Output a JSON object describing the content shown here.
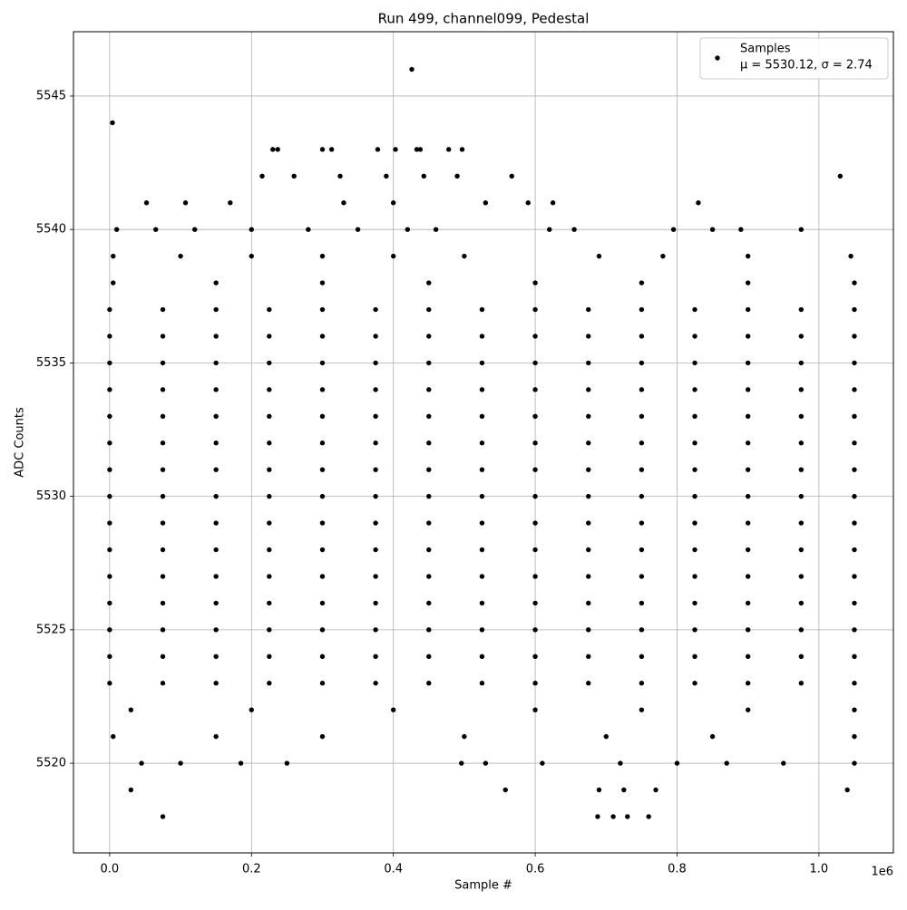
{
  "chart_data": {
    "type": "scatter",
    "title": "Run 499, channel099, Pedestal",
    "x_label": "Sample #",
    "y_label": "ADC Counts",
    "x_offset_label": "1e6",
    "xlim": [
      -0.051,
      1.105
    ],
    "ylim": [
      5516.64,
      5547.41
    ],
    "xticks": [
      {
        "value": 0,
        "label": "0.0"
      },
      {
        "value": 0.2,
        "label": "0.2"
      },
      {
        "value": 0.4,
        "label": "0.4"
      },
      {
        "value": 0.6,
        "label": "0.6"
      },
      {
        "value": 0.8,
        "label": "0.8"
      },
      {
        "value": 1,
        "label": "1.0"
      }
    ],
    "yticks": [
      5520,
      5525,
      5530,
      5535,
      5540,
      5545
    ],
    "grid": true,
    "legend": "upper right",
    "legend_note": "μ = 5530.12, σ = 2.74",
    "series": [
      {
        "name": "Samples",
        "color": "#000000",
        "x": [
          0.004,
          0.426,
          1.03,
          0.23,
          0.237,
          0.3,
          0.313,
          0.378,
          0.403,
          0.433,
          0.438,
          0.478,
          0.497,
          0.215,
          0.26,
          0.325,
          0.39,
          0.443,
          0.49,
          0.567,
          0.052,
          0.107,
          0.17,
          0.33,
          0.4,
          0.53,
          0.59,
          0.625,
          0.83,
          0.01,
          0.065,
          0.12,
          0.2,
          0.28,
          0.35,
          0.42,
          0.46,
          0.62,
          0.655,
          0.795,
          0.85,
          0.89,
          0.975,
          0.005,
          0.1,
          0.2,
          0.3,
          0.4,
          0.5,
          0.69,
          0.78,
          0.9,
          1.045,
          0.005,
          0.15,
          0.3,
          0.45,
          0.6,
          0.75,
          0.9,
          1.05,
          0.03,
          0.2,
          0.4,
          0.6,
          0.75,
          0.9,
          1.05,
          0.005,
          0.15,
          0.3,
          0.5,
          0.7,
          0.85,
          1.05,
          0.045,
          0.1,
          0.185,
          0.25,
          0.496,
          0.53,
          0.61,
          0.72,
          0.8,
          0.87,
          0.95,
          1.05,
          0.03,
          0.558,
          0.69,
          0.725,
          0.77,
          1.04,
          0.075,
          0.688,
          0.71,
          0.73,
          0.76,
          0,
          0.075,
          0.15,
          0.225,
          0.3,
          0.375,
          0.45,
          0.525,
          0.6,
          0.675,
          0.75,
          0.825,
          0.9,
          0.975,
          1.05,
          0,
          0.075,
          0.15,
          0.225,
          0.3,
          0.375,
          0.45,
          0.525,
          0.6,
          0.675,
          0.75,
          0.825,
          0.9,
          0.975,
          1.05,
          0,
          0.075,
          0.15,
          0.225,
          0.3,
          0.375,
          0.45,
          0.525,
          0.6,
          0.675,
          0.75,
          0.825,
          0.9,
          0.975,
          1.05,
          0,
          0.075,
          0.15,
          0.225,
          0.3,
          0.375,
          0.45,
          0.525,
          0.6,
          0.675,
          0.75,
          0.825,
          0.9,
          0.975,
          1.05,
          0,
          0.075,
          0.15,
          0.225,
          0.3,
          0.375,
          0.45,
          0.525,
          0.6,
          0.675,
          0.75,
          0.825,
          0.9,
          0.975,
          1.05,
          0,
          0.075,
          0.15,
          0.225,
          0.3,
          0.375,
          0.45,
          0.525,
          0.6,
          0.675,
          0.75,
          0.825,
          0.9,
          0.975,
          1.05,
          0,
          0.075,
          0.15,
          0.225,
          0.3,
          0.375,
          0.45,
          0.525,
          0.6,
          0.675,
          0.75,
          0.825,
          0.9,
          0.975,
          1.05,
          0,
          0.075,
          0.15,
          0.225,
          0.3,
          0.375,
          0.45,
          0.525,
          0.6,
          0.675,
          0.75,
          0.825,
          0.9,
          0.975,
          1.05,
          0,
          0.075,
          0.15,
          0.225,
          0.3,
          0.375,
          0.45,
          0.525,
          0.6,
          0.675,
          0.75,
          0.825,
          0.9,
          0.975,
          1.05,
          0,
          0.075,
          0.15,
          0.225,
          0.3,
          0.375,
          0.45,
          0.525,
          0.6,
          0.675,
          0.75,
          0.825,
          0.9,
          0.975,
          1.05,
          0,
          0.075,
          0.15,
          0.225,
          0.3,
          0.375,
          0.45,
          0.525,
          0.6,
          0.675,
          0.75,
          0.825,
          0.9,
          0.975,
          1.05,
          0,
          0.075,
          0.15,
          0.225,
          0.3,
          0.375,
          0.45,
          0.525,
          0.6,
          0.675,
          0.75,
          0.825,
          0.9,
          0.975,
          1.05,
          0,
          0.075,
          0.15,
          0.225,
          0.3,
          0.375,
          0.45,
          0.525,
          0.6,
          0.675,
          0.75,
          0.825,
          0.9,
          0.975,
          1.05,
          0,
          0.075,
          0.15,
          0.225,
          0.3,
          0.375,
          0.45,
          0.525,
          0.6,
          0.675,
          0.75,
          0.825,
          0.9,
          0.975,
          1.05,
          0,
          0.075,
          0.15,
          0.225,
          0.3,
          0.375,
          0.45,
          0.525,
          0.6,
          0.675,
          0.75,
          0.825,
          0.9,
          0.975,
          1.05
        ],
        "values": [
          5544,
          5546,
          5542,
          5543,
          5543,
          5543,
          5543,
          5543,
          5543,
          5543,
          5543,
          5543,
          5543,
          5542,
          5542,
          5542,
          5542,
          5542,
          5542,
          5542,
          5541,
          5541,
          5541,
          5541,
          5541,
          5541,
          5541,
          5541,
          5541,
          5540,
          5540,
          5540,
          5540,
          5540,
          5540,
          5540,
          5540,
          5540,
          5540,
          5540,
          5540,
          5540,
          5540,
          5539,
          5539,
          5539,
          5539,
          5539,
          5539,
          5539,
          5539,
          5539,
          5539,
          5538,
          5538,
          5538,
          5538,
          5538,
          5538,
          5538,
          5538,
          5522,
          5522,
          5522,
          5522,
          5522,
          5522,
          5522,
          5521,
          5521,
          5521,
          5521,
          5521,
          5521,
          5521,
          5520,
          5520,
          5520,
          5520,
          5520,
          5520,
          5520,
          5520,
          5520,
          5520,
          5520,
          5520,
          5519,
          5519,
          5519,
          5519,
          5519,
          5519,
          5518,
          5518,
          5518,
          5518,
          5518,
          5523,
          5523,
          5523,
          5523,
          5523,
          5523,
          5523,
          5523,
          5523,
          5523,
          5523,
          5523,
          5523,
          5523,
          5523,
          5524,
          5524,
          5524,
          5524,
          5524,
          5524,
          5524,
          5524,
          5524,
          5524,
          5524,
          5524,
          5524,
          5524,
          5524,
          5525,
          5525,
          5525,
          5525,
          5525,
          5525,
          5525,
          5525,
          5525,
          5525,
          5525,
          5525,
          5525,
          5525,
          5525,
          5526,
          5526,
          5526,
          5526,
          5526,
          5526,
          5526,
          5526,
          5526,
          5526,
          5526,
          5526,
          5526,
          5526,
          5526,
          5527,
          5527,
          5527,
          5527,
          5527,
          5527,
          5527,
          5527,
          5527,
          5527,
          5527,
          5527,
          5527,
          5527,
          5527,
          5528,
          5528,
          5528,
          5528,
          5528,
          5528,
          5528,
          5528,
          5528,
          5528,
          5528,
          5528,
          5528,
          5528,
          5528,
          5529,
          5529,
          5529,
          5529,
          5529,
          5529,
          5529,
          5529,
          5529,
          5529,
          5529,
          5529,
          5529,
          5529,
          5529,
          5530,
          5530,
          5530,
          5530,
          5530,
          5530,
          5530,
          5530,
          5530,
          5530,
          5530,
          5530,
          5530,
          5530,
          5530,
          5531,
          5531,
          5531,
          5531,
          5531,
          5531,
          5531,
          5531,
          5531,
          5531,
          5531,
          5531,
          5531,
          5531,
          5531,
          5532,
          5532,
          5532,
          5532,
          5532,
          5532,
          5532,
          5532,
          5532,
          5532,
          5532,
          5532,
          5532,
          5532,
          5532,
          5533,
          5533,
          5533,
          5533,
          5533,
          5533,
          5533,
          5533,
          5533,
          5533,
          5533,
          5533,
          5533,
          5533,
          5533,
          5534,
          5534,
          5534,
          5534,
          5534,
          5534,
          5534,
          5534,
          5534,
          5534,
          5534,
          5534,
          5534,
          5534,
          5534,
          5535,
          5535,
          5535,
          5535,
          5535,
          5535,
          5535,
          5535,
          5535,
          5535,
          5535,
          5535,
          5535,
          5535,
          5535,
          5536,
          5536,
          5536,
          5536,
          5536,
          5536,
          5536,
          5536,
          5536,
          5536,
          5536,
          5536,
          5536,
          5536,
          5536,
          5537,
          5537,
          5537,
          5537,
          5537,
          5537,
          5537,
          5537,
          5537,
          5537,
          5537,
          5537,
          5537,
          5537,
          5537
        ]
      }
    ]
  }
}
